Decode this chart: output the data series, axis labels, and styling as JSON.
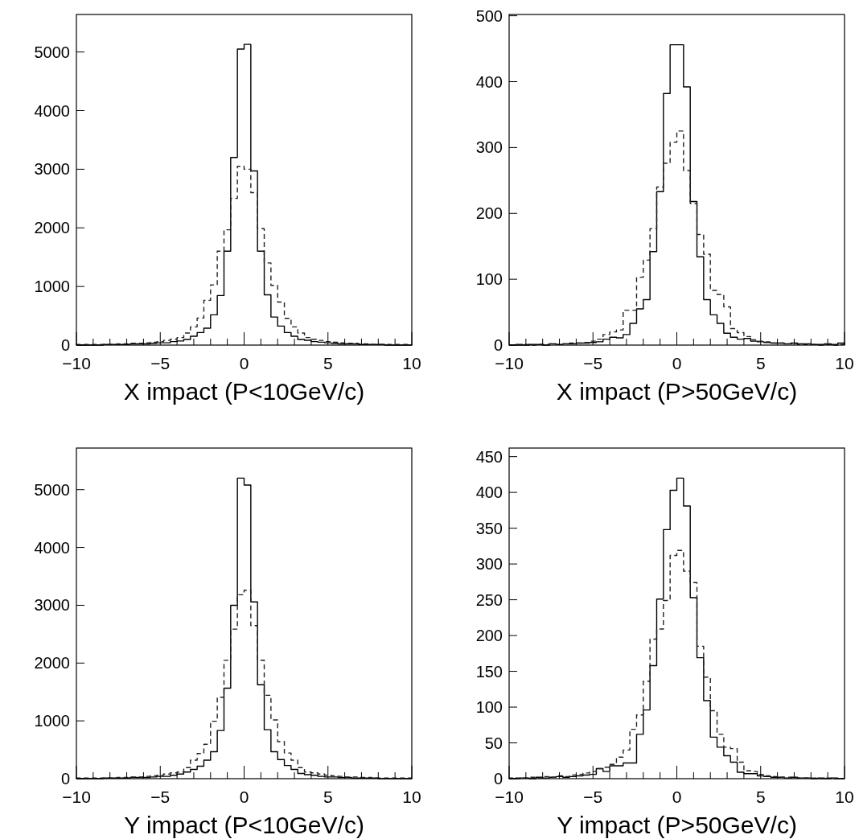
{
  "chart_data": [
    {
      "type": "histogram",
      "xlabel": "X impact (P<10GeV/c)",
      "bins": [
        -10,
        -9.6,
        -9.2,
        -8.8,
        -8.4,
        -8,
        -7.6,
        -7.2,
        -6.8,
        -6.4,
        -6,
        -5.6,
        -5.2,
        -4.8,
        -4.4,
        -4,
        -3.6,
        -3.2,
        -2.8,
        -2.4,
        -2,
        -1.6,
        -1.2,
        -0.8,
        -0.4,
        0,
        0.4,
        0.8,
        1.2,
        1.6,
        2,
        2.4,
        2.8,
        3.2,
        3.6,
        4,
        4.4,
        4.8,
        5.2,
        5.6,
        6,
        6.4,
        6.8,
        7.2,
        7.6,
        8,
        8.4,
        8.8,
        9.2,
        9.6,
        10
      ],
      "series": [
        {
          "color": "#000000",
          "line_style": "solid",
          "values": [
            0,
            0,
            0,
            0,
            10,
            10,
            10,
            10,
            20,
            20,
            20,
            30,
            40,
            40,
            60,
            70,
            96,
            150,
            215,
            288,
            516,
            845,
            1603,
            3200,
            5050,
            5130,
            2970,
            1603,
            858,
            479,
            324,
            215,
            150,
            96,
            82,
            60,
            50,
            40,
            30,
            20,
            20,
            20,
            10,
            10,
            10,
            10,
            0,
            0,
            0,
            0
          ]
        },
        {
          "color": "#222222",
          "line_style": "dashed",
          "values": [
            10,
            10,
            10,
            10,
            10,
            10,
            20,
            20,
            30,
            30,
            40,
            50,
            60,
            80,
            100,
            128,
            205,
            311,
            461,
            763,
            1027,
            1603,
            1968,
            2503,
            3050,
            3000,
            2600,
            1986,
            1402,
            1018,
            735,
            457,
            311,
            205,
            128,
            100,
            80,
            60,
            50,
            40,
            30,
            30,
            20,
            20,
            10,
            10,
            10,
            10,
            10,
            10
          ]
        }
      ],
      "xlim": [
        -10,
        10
      ],
      "xticks": [
        {
          "value": -10,
          "label": "−10"
        },
        {
          "value": -9,
          "label": null
        },
        {
          "value": -8,
          "label": null
        },
        {
          "value": -7,
          "label": null
        },
        {
          "value": -6,
          "label": null
        },
        {
          "value": -5,
          "label": "−5"
        },
        {
          "value": -4,
          "label": null
        },
        {
          "value": -3,
          "label": null
        },
        {
          "value": -2,
          "label": null
        },
        {
          "value": -1,
          "label": null
        },
        0,
        {
          "value": 1,
          "label": null
        },
        {
          "value": 2,
          "label": null
        },
        {
          "value": 3,
          "label": null
        },
        {
          "value": 4,
          "label": null
        },
        5,
        {
          "value": 6,
          "label": null
        },
        {
          "value": 7,
          "label": null
        },
        {
          "value": 8,
          "label": null
        },
        {
          "value": 9,
          "label": null
        },
        10
      ],
      "ylim": [
        0,
        5640
      ],
      "yticks": [
        0,
        1000,
        2000,
        3000,
        4000,
        5000
      ],
      "grid": false
    },
    {
      "type": "histogram",
      "xlabel": "X impact (P>50GeV/c)",
      "bins": [
        -10,
        -9.6,
        -9.2,
        -8.8,
        -8.4,
        -8,
        -7.6,
        -7.2,
        -6.8,
        -6.4,
        -6,
        -5.6,
        -5.2,
        -4.8,
        -4.4,
        -4,
        -3.6,
        -3.2,
        -2.8,
        -2.4,
        -2,
        -1.6,
        -1.2,
        -0.8,
        -0.4,
        0,
        0.4,
        0.8,
        1.2,
        1.6,
        2,
        2.4,
        2.8,
        3.2,
        3.6,
        4,
        4.4,
        4.8,
        5.2,
        5.6,
        6,
        6.4,
        6.8,
        7.2,
        7.6,
        8,
        8.4,
        8.8,
        9.2,
        9.6,
        10
      ],
      "series": [
        {
          "color": "#000000",
          "line_style": "solid",
          "values": [
            0,
            1,
            0,
            1,
            1,
            0,
            2,
            1,
            2,
            2,
            3,
            3,
            4,
            5,
            9,
            12,
            11,
            16,
            33,
            55,
            69,
            142,
            233,
            382,
            456,
            456,
            392,
            218,
            134,
            69,
            46,
            33,
            18,
            12,
            9,
            10,
            6,
            5,
            4,
            3,
            3,
            2,
            3,
            2,
            2,
            1,
            1,
            2,
            1,
            3
          ]
        },
        {
          "color": "#222222",
          "line_style": "dashed",
          "values": [
            0,
            0,
            1,
            0,
            1,
            1,
            2,
            1,
            2,
            3,
            3,
            4,
            6,
            9,
            16,
            20,
            23,
            53,
            53,
            103,
            129,
            177,
            240,
            276,
            308,
            325,
            265,
            215,
            168,
            138,
            83,
            77,
            58,
            25,
            19,
            13,
            8,
            6,
            5,
            3,
            3,
            2,
            2,
            1,
            1,
            1,
            0,
            1,
            0,
            1
          ]
        }
      ],
      "xlim": [
        -10,
        10
      ],
      "xticks": [
        {
          "value": -10,
          "label": "−10"
        },
        {
          "value": -9,
          "label": null
        },
        {
          "value": -8,
          "label": null
        },
        {
          "value": -7,
          "label": null
        },
        {
          "value": -6,
          "label": null
        },
        {
          "value": -5,
          "label": "−5"
        },
        {
          "value": -4,
          "label": null
        },
        {
          "value": -3,
          "label": null
        },
        {
          "value": -2,
          "label": null
        },
        {
          "value": -1,
          "label": null
        },
        0,
        {
          "value": 1,
          "label": null
        },
        {
          "value": 2,
          "label": null
        },
        {
          "value": 3,
          "label": null
        },
        {
          "value": 4,
          "label": null
        },
        5,
        {
          "value": 6,
          "label": null
        },
        {
          "value": 7,
          "label": null
        },
        {
          "value": 8,
          "label": null
        },
        {
          "value": 9,
          "label": null
        },
        10
      ],
      "ylim": [
        0,
        502
      ],
      "yticks": [
        0,
        100,
        200,
        300,
        400,
        500
      ],
      "grid": false
    },
    {
      "type": "histogram",
      "xlabel": "Y impact (P<10GeV/c)",
      "bins": [
        -10,
        -9.6,
        -9.2,
        -8.8,
        -8.4,
        -8,
        -7.6,
        -7.2,
        -6.8,
        -6.4,
        -6,
        -5.6,
        -5.2,
        -4.8,
        -4.4,
        -4,
        -3.6,
        -3.2,
        -2.8,
        -2.4,
        -2,
        -1.6,
        -1.2,
        -0.8,
        -0.4,
        0,
        0.4,
        0.8,
        1.2,
        1.6,
        2,
        2.4,
        2.8,
        3.2,
        3.6,
        4,
        4.4,
        4.8,
        5.2,
        5.6,
        6,
        6.4,
        6.8,
        7.2,
        7.6,
        8,
        8.4,
        8.8,
        9.2,
        9.6,
        10
      ],
      "series": [
        {
          "color": "#000000",
          "line_style": "solid",
          "values": [
            0,
            0,
            0,
            0,
            10,
            10,
            10,
            10,
            20,
            20,
            20,
            30,
            40,
            40,
            60,
            80,
            114,
            160,
            215,
            320,
            467,
            833,
            1566,
            2999,
            5200,
            5080,
            3059,
            1625,
            847,
            467,
            330,
            228,
            160,
            91,
            70,
            60,
            40,
            30,
            30,
            20,
            20,
            10,
            10,
            10,
            10,
            0,
            0,
            0,
            0,
            0
          ]
        },
        {
          "color": "#222222",
          "line_style": "dashed",
          "values": [
            10,
            10,
            10,
            10,
            10,
            10,
            20,
            20,
            30,
            30,
            40,
            50,
            60,
            80,
            100,
            114,
            192,
            320,
            435,
            595,
            994,
            1410,
            2047,
            2587,
            3182,
            3260,
            2647,
            2050,
            1442,
            1016,
            641,
            444,
            320,
            192,
            114,
            100,
            80,
            60,
            50,
            40,
            30,
            30,
            20,
            20,
            10,
            10,
            10,
            10,
            10,
            10
          ]
        }
      ],
      "xlim": [
        -10,
        10
      ],
      "xticks": [
        {
          "value": -10,
          "label": "−10"
        },
        {
          "value": -9,
          "label": null
        },
        {
          "value": -8,
          "label": null
        },
        {
          "value": -7,
          "label": null
        },
        {
          "value": -6,
          "label": null
        },
        {
          "value": -5,
          "label": "−5"
        },
        {
          "value": -4,
          "label": null
        },
        {
          "value": -3,
          "label": null
        },
        {
          "value": -2,
          "label": null
        },
        {
          "value": -1,
          "label": null
        },
        0,
        {
          "value": 1,
          "label": null
        },
        {
          "value": 2,
          "label": null
        },
        {
          "value": 3,
          "label": null
        },
        {
          "value": 4,
          "label": null
        },
        5,
        {
          "value": 6,
          "label": null
        },
        {
          "value": 7,
          "label": null
        },
        {
          "value": 8,
          "label": null
        },
        {
          "value": 9,
          "label": null
        },
        10
      ],
      "ylim": [
        0,
        5720
      ],
      "yticks": [
        0,
        1000,
        2000,
        3000,
        4000,
        5000
      ],
      "grid": false
    },
    {
      "type": "histogram",
      "xlabel": "Y impact (P>50GeV/c)",
      "bins": [
        -10,
        -9.6,
        -9.2,
        -8.8,
        -8.4,
        -8,
        -7.6,
        -7.2,
        -6.8,
        -6.4,
        -6,
        -5.6,
        -5.2,
        -4.8,
        -4.4,
        -4,
        -3.6,
        -3.2,
        -2.8,
        -2.4,
        -2,
        -1.6,
        -1.2,
        -0.8,
        -0.4,
        0,
        0.4,
        0.8,
        1.2,
        1.6,
        2,
        2.4,
        2.8,
        3.2,
        3.6,
        4,
        4.4,
        4.8,
        5.2,
        5.6,
        6,
        6.4,
        6.8,
        7.2,
        7.6,
        8,
        8.4,
        8.8,
        9.2,
        9.6,
        10
      ],
      "series": [
        {
          "color": "#000000",
          "line_style": "solid",
          "values": [
            0,
            1,
            1,
            0,
            2,
            1,
            2,
            3,
            2,
            3,
            4,
            5,
            6,
            14,
            10,
            18,
            18,
            22,
            22,
            62,
            96,
            158,
            251,
            348,
            403,
            420,
            381,
            253,
            169,
            109,
            58,
            44,
            32,
            23,
            9,
            7,
            7,
            4,
            3,
            2,
            2,
            1,
            2,
            1,
            1,
            0,
            1,
            0,
            1,
            0
          ]
        },
        {
          "color": "#222222",
          "line_style": "dashed",
          "values": [
            1,
            0,
            1,
            2,
            1,
            3,
            2,
            4,
            3,
            5,
            6,
            8,
            10,
            14,
            16,
            20,
            30,
            40,
            69,
            89,
            136,
            195,
            209,
            249,
            312,
            319,
            290,
            274,
            185,
            142,
            95,
            62,
            44,
            42,
            23,
            11,
            10,
            6,
            4,
            3,
            2,
            2,
            1,
            1,
            1,
            1,
            0,
            1,
            0,
            0
          ]
        }
      ],
      "xlim": [
        -10,
        10
      ],
      "xticks": [
        {
          "value": -10,
          "label": "−10"
        },
        {
          "value": -9,
          "label": null
        },
        {
          "value": -8,
          "label": null
        },
        {
          "value": -7,
          "label": null
        },
        {
          "value": -6,
          "label": null
        },
        {
          "value": -5,
          "label": "−5"
        },
        {
          "value": -4,
          "label": null
        },
        {
          "value": -3,
          "label": null
        },
        {
          "value": -2,
          "label": null
        },
        {
          "value": -1,
          "label": null
        },
        0,
        {
          "value": 1,
          "label": null
        },
        {
          "value": 2,
          "label": null
        },
        {
          "value": 3,
          "label": null
        },
        {
          "value": 4,
          "label": null
        },
        5,
        {
          "value": 6,
          "label": null
        },
        {
          "value": 7,
          "label": null
        },
        {
          "value": 8,
          "label": null
        },
        {
          "value": 9,
          "label": null
        },
        10
      ],
      "ylim": [
        0,
        462
      ],
      "yticks": [
        0,
        50,
        100,
        150,
        200,
        250,
        300,
        350,
        400,
        450
      ],
      "grid": false
    }
  ]
}
